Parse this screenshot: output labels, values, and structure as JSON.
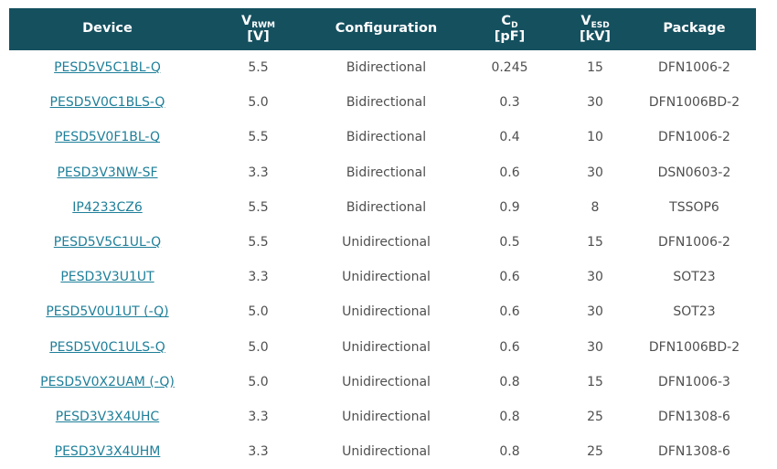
{
  "colors": {
    "header_bg": "#15505f",
    "header_text": "#ffffff",
    "link": "#1e7f99",
    "body_text": "#4f4f4f",
    "background": "#ffffff"
  },
  "table": {
    "columns": {
      "device": {
        "label": "Device"
      },
      "vrwm": {
        "main": "V",
        "sub": "RWM",
        "unit": "[V]"
      },
      "configuration": {
        "label": "Configuration"
      },
      "cd": {
        "main": "C",
        "sub": "D",
        "unit": "[pF]"
      },
      "vesd": {
        "main": "V",
        "sub": "ESD",
        "unit": "[kV]"
      },
      "package": {
        "label": "Package"
      }
    },
    "rows": [
      {
        "device": "PESD5V5C1BL-Q",
        "vrwm": "5.5",
        "configuration": "Bidirectional",
        "cd": "0.245",
        "vesd": "15",
        "package": "DFN1006-2"
      },
      {
        "device": "PESD5V0C1BLS-Q",
        "vrwm": "5.0",
        "configuration": "Bidirectional",
        "cd": "0.3",
        "vesd": "30",
        "package": "DFN1006BD-2"
      },
      {
        "device": "PESD5V0F1BL-Q",
        "vrwm": "5.5",
        "configuration": "Bidirectional",
        "cd": "0.4",
        "vesd": "10",
        "package": "DFN1006-2"
      },
      {
        "device": "PESD3V3NW-SF",
        "vrwm": "3.3",
        "configuration": "Bidirectional",
        "cd": "0.6",
        "vesd": "30",
        "package": "DSN0603-2"
      },
      {
        "device": "IP4233CZ6",
        "vrwm": "5.5",
        "configuration": "Bidirectional",
        "cd": "0.9",
        "vesd": "8",
        "package": "TSSOP6"
      },
      {
        "device": "PESD5V5C1UL-Q",
        "vrwm": "5.5",
        "configuration": "Unidirectional",
        "cd": "0.5",
        "vesd": "15",
        "package": "DFN1006-2"
      },
      {
        "device": "PESD3V3U1UT",
        "vrwm": "3.3",
        "configuration": "Unidirectional",
        "cd": "0.6",
        "vesd": "30",
        "package": "SOT23"
      },
      {
        "device": "PESD5V0U1UT (-Q)",
        "vrwm": "5.0",
        "configuration": "Unidirectional",
        "cd": "0.6",
        "vesd": "30",
        "package": "SOT23"
      },
      {
        "device": "PESD5V0C1ULS-Q",
        "vrwm": "5.0",
        "configuration": "Unidirectional",
        "cd": "0.6",
        "vesd": "30",
        "package": "DFN1006BD-2"
      },
      {
        "device": "PESD5V0X2UAM (-Q)",
        "vrwm": "5.0",
        "configuration": "Unidirectional",
        "cd": "0.8",
        "vesd": "15",
        "package": "DFN1006-3"
      },
      {
        "device": "PESD3V3X4UHC",
        "vrwm": "3.3",
        "configuration": "Unidirectional",
        "cd": "0.8",
        "vesd": "25",
        "package": "DFN1308-6"
      },
      {
        "device": "PESD3V3X4UHM",
        "vrwm": "3.3",
        "configuration": "Unidirectional",
        "cd": "0.8",
        "vesd": "25",
        "package": "DFN1308-6"
      }
    ]
  }
}
